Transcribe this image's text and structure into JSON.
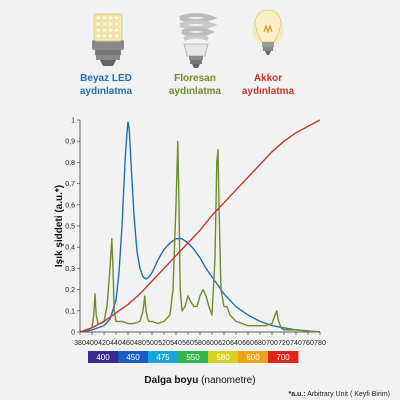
{
  "legend": {
    "led": {
      "line1": "Beyaz LED",
      "line2": "aydınlatma",
      "color": "#1f6fb5",
      "icon": "led-bulb-icon"
    },
    "fluorescent": {
      "line1": "Floresan",
      "line2": "aydınlatma",
      "color": "#6e8b2e",
      "icon": "cfl-bulb-icon"
    },
    "incandescent": {
      "line1": "Akkor",
      "line2": "aydınlatma",
      "color": "#c0392b",
      "icon": "incandescent-bulb-icon"
    }
  },
  "footnote": {
    "bold": "*a.u.:",
    "text": " Arbitrary Unit ( Keyfi Birim)"
  },
  "chart_data": {
    "type": "line",
    "ylabel": "Işık şiddeti (a.u.*)",
    "xlabel_bold": "Dalga boyu",
    "xlabel_rest": " (nanometre)",
    "xlim": [
      380,
      780
    ],
    "ylim": [
      0,
      1
    ],
    "x_ticks": [
      "380",
      "400",
      "420",
      "440",
      "460",
      "480",
      "500",
      "520",
      "540",
      "560",
      "580",
      "600",
      "620",
      "640",
      "660",
      "680",
      "700",
      "720",
      "740",
      "760",
      "780"
    ],
    "y_ticks": [
      "0",
      "0,1",
      "0,2",
      "0,3",
      "0,4",
      "0,5",
      "0,6",
      "0,7",
      "0,8",
      "0,9",
      "1"
    ],
    "spectrum_bar": [
      {
        "label": "400",
        "color": "#3b2a8f"
      },
      {
        "label": "450",
        "color": "#1a5bc4"
      },
      {
        "label": "475",
        "color": "#16a6d8"
      },
      {
        "label": "550",
        "color": "#33b34a"
      },
      {
        "label": "580",
        "color": "#d6d21e"
      },
      {
        "label": "600",
        "color": "#f0a21b"
      },
      {
        "label": "700",
        "color": "#e0241c"
      }
    ],
    "series": [
      {
        "name": "Beyaz LED aydınlatma",
        "color": "#1f6fb5",
        "x": [
          380,
          400,
          420,
          430,
          440,
          445,
          450,
          455,
          458,
          460,
          462,
          465,
          470,
          475,
          480,
          485,
          490,
          495,
          500,
          505,
          510,
          520,
          530,
          540,
          550,
          555,
          560,
          570,
          580,
          590,
          600,
          620,
          640,
          660,
          680,
          700,
          720,
          740,
          760,
          780
        ],
        "y": [
          0.0,
          0.01,
          0.03,
          0.06,
          0.15,
          0.28,
          0.5,
          0.8,
          0.93,
          0.99,
          0.96,
          0.8,
          0.55,
          0.38,
          0.3,
          0.26,
          0.25,
          0.26,
          0.28,
          0.31,
          0.34,
          0.39,
          0.42,
          0.44,
          0.44,
          0.43,
          0.42,
          0.39,
          0.35,
          0.3,
          0.26,
          0.18,
          0.12,
          0.08,
          0.05,
          0.03,
          0.02,
          0.01,
          0.005,
          0.0
        ]
      },
      {
        "name": "Floresan aydınlatma",
        "color": "#6e8b2e",
        "x": [
          380,
          390,
          400,
          403,
          405,
          407,
          410,
          415,
          420,
          425,
          430,
          433,
          435,
          437,
          440,
          445,
          450,
          460,
          470,
          480,
          485,
          488,
          490,
          493,
          495,
          500,
          510,
          520,
          530,
          535,
          540,
          543,
          545,
          547,
          550,
          555,
          560,
          565,
          570,
          575,
          580,
          585,
          590,
          595,
          600,
          605,
          608,
          610,
          612,
          615,
          620,
          625,
          630,
          640,
          650,
          660,
          670,
          680,
          690,
          700,
          705,
          708,
          710,
          715,
          720,
          740,
          760,
          780
        ],
        "y": [
          0.0,
          0.01,
          0.02,
          0.08,
          0.18,
          0.08,
          0.04,
          0.04,
          0.05,
          0.12,
          0.3,
          0.44,
          0.3,
          0.1,
          0.05,
          0.05,
          0.05,
          0.04,
          0.04,
          0.05,
          0.1,
          0.17,
          0.1,
          0.06,
          0.05,
          0.05,
          0.04,
          0.05,
          0.08,
          0.2,
          0.6,
          0.9,
          0.6,
          0.2,
          0.1,
          0.12,
          0.17,
          0.14,
          0.12,
          0.12,
          0.17,
          0.2,
          0.17,
          0.12,
          0.08,
          0.35,
          0.8,
          0.86,
          0.55,
          0.2,
          0.12,
          0.12,
          0.08,
          0.05,
          0.04,
          0.03,
          0.03,
          0.03,
          0.03,
          0.04,
          0.08,
          0.1,
          0.06,
          0.02,
          0.01,
          0.01,
          0.005,
          0.0
        ]
      },
      {
        "name": "Akkor aydınlatma",
        "color": "#c0392b",
        "x": [
          380,
          400,
          420,
          440,
          460,
          480,
          500,
          520,
          540,
          560,
          580,
          600,
          620,
          640,
          660,
          680,
          700,
          720,
          740,
          760,
          780
        ],
        "y": [
          0.0,
          0.02,
          0.05,
          0.09,
          0.13,
          0.18,
          0.24,
          0.3,
          0.36,
          0.42,
          0.48,
          0.55,
          0.61,
          0.67,
          0.73,
          0.79,
          0.85,
          0.9,
          0.94,
          0.97,
          1.0
        ]
      }
    ]
  }
}
